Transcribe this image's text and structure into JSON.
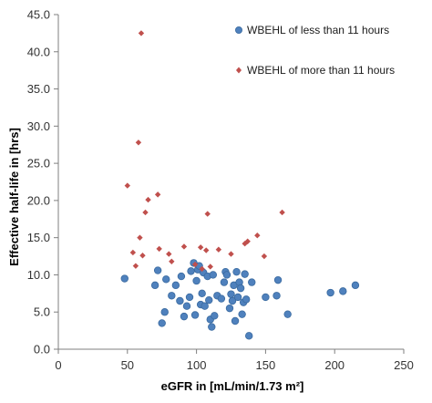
{
  "chart_data": {
    "type": "scatter",
    "xlabel": "eGFR in [mL/min/1.73 m²]",
    "ylabel": "Effective half-life in [hrs]",
    "xlim": [
      0,
      250
    ],
    "ylim": [
      0,
      45
    ],
    "xticks": [
      0,
      50,
      100,
      150,
      200,
      250
    ],
    "yticks": [
      0.0,
      5.0,
      10.0,
      15.0,
      20.0,
      25.0,
      30.0,
      35.0,
      40.0,
      45.0
    ],
    "xtick_labels": [
      "0",
      "50",
      "100",
      "150",
      "200",
      "250"
    ],
    "ytick_labels": [
      "0.0",
      "5.0",
      "10.0",
      "15.0",
      "20.0",
      "25.0",
      "30.0",
      "35.0",
      "40.0",
      "45.0"
    ],
    "grid": false,
    "legend_position": "top-right",
    "series": [
      {
        "name": "WBEHL of less than 11 hours",
        "marker": "circle",
        "color": "#4f81bd",
        "x": [
          48,
          70,
          72,
          75,
          77,
          78,
          82,
          85,
          88,
          89,
          91,
          93,
          95,
          96,
          98,
          99,
          100,
          101,
          102,
          103,
          104,
          105,
          106,
          108,
          109,
          110,
          111,
          112,
          113,
          115,
          118,
          120,
          121,
          122,
          124,
          125,
          126,
          127,
          128,
          129,
          130,
          131,
          132,
          133,
          134,
          135,
          136,
          138,
          140,
          150,
          158,
          159,
          166,
          197,
          206,
          215
        ],
        "y": [
          9.5,
          8.6,
          10.6,
          3.5,
          5.0,
          9.4,
          7.2,
          8.6,
          6.5,
          9.8,
          4.4,
          5.8,
          7.0,
          10.5,
          11.6,
          4.6,
          9.2,
          10.7,
          11.2,
          6.0,
          7.5,
          10.3,
          5.8,
          9.8,
          6.6,
          4.0,
          3.0,
          10.0,
          4.5,
          7.2,
          6.8,
          9.0,
          10.4,
          10.0,
          5.5,
          7.4,
          6.5,
          8.6,
          3.8,
          10.4,
          7.0,
          9.0,
          8.2,
          4.7,
          6.3,
          10.1,
          6.7,
          1.8,
          9.0,
          7.0,
          7.2,
          9.3,
          4.7,
          7.6,
          7.8,
          8.6
        ]
      },
      {
        "name": "WBEHL of more than 11 hours",
        "marker": "diamond",
        "color": "#c0504d",
        "x": [
          50,
          54,
          56,
          58,
          59,
          60,
          61,
          63,
          65,
          72,
          73,
          80,
          82,
          91,
          99,
          103,
          104,
          107,
          108,
          110,
          116,
          125,
          135,
          137,
          144,
          149,
          162
        ],
        "y": [
          22.0,
          13.0,
          11.2,
          27.8,
          15.0,
          42.5,
          12.6,
          18.4,
          20.1,
          20.8,
          13.5,
          12.8,
          11.8,
          13.8,
          11.4,
          13.7,
          10.8,
          13.3,
          18.2,
          11.1,
          13.4,
          12.8,
          14.2,
          14.5,
          15.3,
          12.5,
          18.4
        ]
      }
    ]
  }
}
